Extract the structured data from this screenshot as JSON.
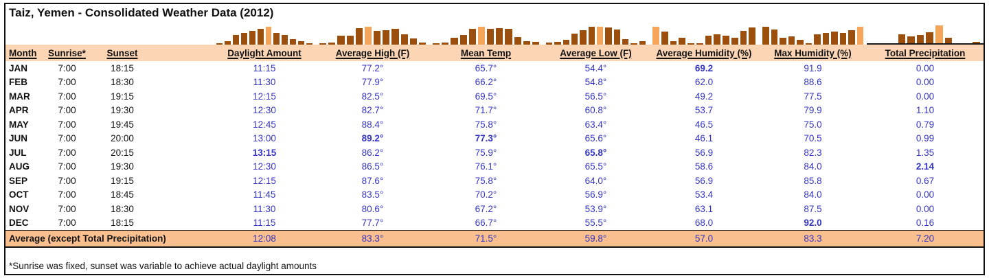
{
  "title": "Taiz, Yemen - Consolidated Weather Data (2012)",
  "footnote": "*Sunrise was fixed, sunset was variable to achieve actual daylight amounts",
  "colors": {
    "header_fill": "#FCD5B4",
    "average_fill": "#FABF8F",
    "bar_dark": "#9C4F0D",
    "bar_highlight": "#F5A55A",
    "value_blue": "#3333C2",
    "border_black": "#111111"
  },
  "months": [
    "JAN",
    "FEB",
    "MAR",
    "APR",
    "MAY",
    "JUN",
    "JUL",
    "AUG",
    "SEP",
    "OCT",
    "NOV",
    "DEC"
  ],
  "table": {
    "columns": [
      {
        "key": "month",
        "label": "Month"
      },
      {
        "key": "sunrise",
        "label": "Sunrise*"
      },
      {
        "key": "sunset",
        "label": "Sunset"
      },
      {
        "key": "daylight",
        "label": "Daylight Amount"
      },
      {
        "key": "avg_high",
        "label": "Average High (F)"
      },
      {
        "key": "mean_temp",
        "label": "Mean Temp"
      },
      {
        "key": "avg_low",
        "label": "Average Low (F)"
      },
      {
        "key": "avg_humidity",
        "label": "Average Humidity (%)"
      },
      {
        "key": "max_humidity",
        "label": "Max Humidity (%)"
      },
      {
        "key": "precip",
        "label": "Total Precipitation"
      }
    ],
    "rows": [
      {
        "month": "JAN",
        "sunrise": "7:00",
        "sunset": "18:15",
        "daylight": "11:15",
        "avg_high": "77.2°",
        "mean_temp": "65.7°",
        "avg_low": "54.4°",
        "avg_humidity": "69.2",
        "max_humidity": "91.9",
        "precip": "0.00"
      },
      {
        "month": "FEB",
        "sunrise": "7:00",
        "sunset": "18:30",
        "daylight": "11:30",
        "avg_high": "77.9°",
        "mean_temp": "66.2°",
        "avg_low": "54.8°",
        "avg_humidity": "62.0",
        "max_humidity": "88.6",
        "precip": "0.00"
      },
      {
        "month": "MAR",
        "sunrise": "7:00",
        "sunset": "19:15",
        "daylight": "12:15",
        "avg_high": "82.5°",
        "mean_temp": "69.5°",
        "avg_low": "56.5°",
        "avg_humidity": "49.2",
        "max_humidity": "77.5",
        "precip": "0.00"
      },
      {
        "month": "APR",
        "sunrise": "7:00",
        "sunset": "19:30",
        "daylight": "12:30",
        "avg_high": "82.7°",
        "mean_temp": "71.7°",
        "avg_low": "60.8°",
        "avg_humidity": "53.7",
        "max_humidity": "79.9",
        "precip": "1.10"
      },
      {
        "month": "MAY",
        "sunrise": "7:00",
        "sunset": "19:45",
        "daylight": "12:45",
        "avg_high": "88.4°",
        "mean_temp": "75.8°",
        "avg_low": "63.4°",
        "avg_humidity": "46.5",
        "max_humidity": "75.0",
        "precip": "0.79"
      },
      {
        "month": "JUN",
        "sunrise": "7:00",
        "sunset": "20:00",
        "daylight": "13:00",
        "avg_high": "89.2°",
        "mean_temp": "77.3°",
        "avg_low": "65.6°",
        "avg_humidity": "46.1",
        "max_humidity": "70.5",
        "precip": "0.99"
      },
      {
        "month": "JUL",
        "sunrise": "7:00",
        "sunset": "20:15",
        "daylight": "13:15",
        "avg_high": "86.2°",
        "mean_temp": "75.9°",
        "avg_low": "65.8°",
        "avg_humidity": "56.9",
        "max_humidity": "82.3",
        "precip": "1.35"
      },
      {
        "month": "AUG",
        "sunrise": "7:00",
        "sunset": "19:30",
        "daylight": "12:30",
        "avg_high": "86.5°",
        "mean_temp": "76.1°",
        "avg_low": "65.5°",
        "avg_humidity": "58.6",
        "max_humidity": "84.0",
        "precip": "2.14"
      },
      {
        "month": "SEP",
        "sunrise": "7:00",
        "sunset": "19:15",
        "daylight": "12:15",
        "avg_high": "87.6°",
        "mean_temp": "75.8°",
        "avg_low": "64.0°",
        "avg_humidity": "56.9",
        "max_humidity": "85.8",
        "precip": "0.67"
      },
      {
        "month": "OCT",
        "sunrise": "7:00",
        "sunset": "18:45",
        "daylight": "11:45",
        "avg_high": "83.5°",
        "mean_temp": "70.2°",
        "avg_low": "56.9°",
        "avg_humidity": "53.4",
        "max_humidity": "84.0",
        "precip": "0.00"
      },
      {
        "month": "NOV",
        "sunrise": "7:00",
        "sunset": "18:30",
        "daylight": "11:30",
        "avg_high": "80.6°",
        "mean_temp": "67.2°",
        "avg_low": "53.9°",
        "avg_humidity": "63.1",
        "max_humidity": "87.5",
        "precip": "0.00"
      },
      {
        "month": "DEC",
        "sunrise": "7:00",
        "sunset": "18:15",
        "daylight": "11:15",
        "avg_high": "77.7°",
        "mean_temp": "66.7°",
        "avg_low": "55.5°",
        "avg_humidity": "68.0",
        "max_humidity": "92.0",
        "precip": "0.16"
      }
    ],
    "average_row": {
      "label": "Average (except Total Precipitation)",
      "daylight": "12:08",
      "avg_high": "83.3°",
      "mean_temp": "71.5°",
      "avg_low": "59.8°",
      "avg_humidity": "57.0",
      "max_humidity": "83.3",
      "precip": "7.20"
    }
  },
  "chart_data": [
    {
      "type": "bar",
      "key": "daylight",
      "title": "Daylight Amount (hours)",
      "categories": [
        "JAN",
        "FEB",
        "MAR",
        "APR",
        "MAY",
        "JUN",
        "JUL",
        "AUG",
        "SEP",
        "OCT",
        "NOV",
        "DEC"
      ],
      "values": [
        11.25,
        11.5,
        12.25,
        12.5,
        12.75,
        13.0,
        13.25,
        12.5,
        12.25,
        11.75,
        11.5,
        11.25
      ],
      "highlight_index": 6,
      "show_axis": false
    },
    {
      "type": "bar",
      "key": "avg_high",
      "title": "Average High (F)",
      "categories": [
        "JAN",
        "FEB",
        "MAR",
        "APR",
        "MAY",
        "JUN",
        "JUL",
        "AUG",
        "SEP",
        "OCT",
        "NOV",
        "DEC"
      ],
      "values": [
        77.2,
        77.9,
        82.5,
        82.7,
        88.4,
        89.2,
        86.2,
        86.5,
        87.6,
        83.5,
        80.6,
        77.7
      ],
      "highlight_index": 5,
      "show_axis": false
    },
    {
      "type": "bar",
      "key": "mean_temp",
      "title": "Mean Temp (F)",
      "categories": [
        "JAN",
        "FEB",
        "MAR",
        "APR",
        "MAY",
        "JUN",
        "JUL",
        "AUG",
        "SEP",
        "OCT",
        "NOV",
        "DEC"
      ],
      "values": [
        65.7,
        66.2,
        69.5,
        71.7,
        75.8,
        77.3,
        75.9,
        76.1,
        75.8,
        70.2,
        67.2,
        66.7
      ],
      "highlight_index": 5,
      "show_axis": false
    },
    {
      "type": "bar",
      "key": "avg_low",
      "title": "Average Low (F)",
      "categories": [
        "JAN",
        "FEB",
        "MAR",
        "APR",
        "MAY",
        "JUN",
        "JUL",
        "AUG",
        "SEP",
        "OCT",
        "NOV",
        "DEC"
      ],
      "values": [
        54.4,
        54.8,
        56.5,
        60.8,
        63.4,
        65.6,
        65.8,
        65.5,
        64.0,
        56.9,
        53.9,
        55.5
      ],
      "highlight_index": 6,
      "show_axis": false
    },
    {
      "type": "bar",
      "key": "avg_humidity",
      "title": "Average Humidity (%)",
      "categories": [
        "JAN",
        "FEB",
        "MAR",
        "APR",
        "MAY",
        "JUN",
        "JUL",
        "AUG",
        "SEP",
        "OCT",
        "NOV",
        "DEC"
      ],
      "values": [
        69.2,
        62.0,
        49.2,
        53.7,
        46.5,
        46.1,
        56.9,
        58.6,
        56.9,
        53.4,
        63.1,
        68.0
      ],
      "highlight_index": 0,
      "show_axis": false
    },
    {
      "type": "bar",
      "key": "max_humidity",
      "title": "Max Humidity (%)",
      "categories": [
        "JAN",
        "FEB",
        "MAR",
        "APR",
        "MAY",
        "JUN",
        "JUL",
        "AUG",
        "SEP",
        "OCT",
        "NOV",
        "DEC"
      ],
      "values": [
        91.9,
        88.6,
        77.5,
        79.9,
        75.0,
        70.5,
        82.3,
        84.0,
        85.8,
        84.0,
        87.5,
        92.0
      ],
      "highlight_index": 11,
      "show_axis": false
    },
    {
      "type": "bar",
      "key": "precip",
      "title": "Total Precipitation",
      "categories": [
        "JAN",
        "FEB",
        "MAR",
        "APR",
        "MAY",
        "JUN",
        "JUL",
        "AUG",
        "SEP",
        "OCT",
        "NOV",
        "DEC"
      ],
      "values": [
        0,
        0,
        0,
        1.1,
        0.79,
        0.99,
        1.35,
        2.14,
        0.67,
        0,
        0,
        0.16
      ],
      "highlight_index": 7,
      "show_axis": true,
      "ymin": 0
    }
  ]
}
